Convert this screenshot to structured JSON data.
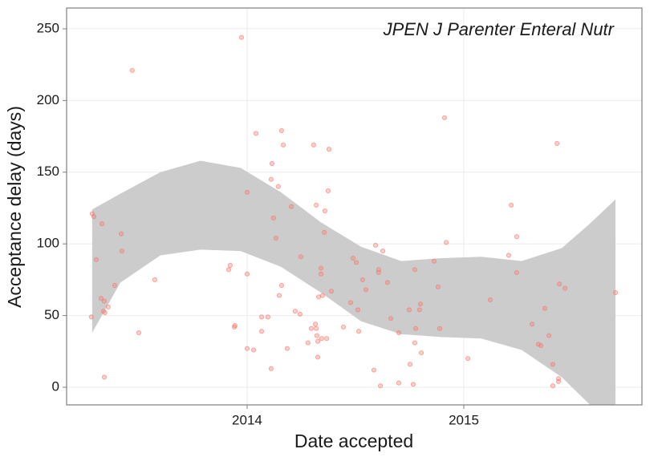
{
  "chart_data": {
    "type": "scatter",
    "annotation": "JPEN J Parenter Enteral Nutr",
    "x_label": "Date accepted",
    "y_label": "Acceptance delay (days)",
    "xlim": [
      2013.167,
      2015.822
    ],
    "xticks": [
      2014,
      2015
    ],
    "ylim": [
      -12.3,
      264.5
    ],
    "yticks": [
      0,
      50,
      100,
      150,
      200,
      250
    ],
    "grid": true,
    "color": "#f8766d",
    "x": [
      2013.285,
      2013.293,
      2013.281,
      2013.304,
      2013.33,
      2013.326,
      2013.341,
      2013.337,
      2013.344,
      2013.359,
      2013.341,
      2013.389,
      2013.419,
      2013.422,
      2013.47,
      2013.5,
      2013.574,
      2013.915,
      2013.922,
      2013.941,
      2013.944,
      2013.974,
      2014.0,
      2014.0,
      2014.0,
      2014.03,
      2014.041,
      2014.067,
      2014.067,
      2014.096,
      2014.111,
      2014.115,
      2014.111,
      2014.122,
      2014.133,
      2014.144,
      2014.148,
      2014.159,
      2014.159,
      2014.167,
      2014.185,
      2014.204,
      2014.222,
      2014.248,
      2014.244,
      2014.281,
      2014.296,
      2014.307,
      2014.315,
      2014.319,
      2014.319,
      2014.322,
      2014.326,
      2014.326,
      2014.33,
      2014.341,
      2014.341,
      2014.344,
      2014.348,
      2014.356,
      2014.359,
      2014.367,
      2014.374,
      2014.378,
      2014.389,
      2014.444,
      2014.478,
      2014.489,
      2014.504,
      2014.511,
      2014.515,
      2014.533,
      2014.548,
      2014.585,
      2014.593,
      2014.607,
      2014.607,
      2014.615,
      2014.626,
      2014.648,
      2014.663,
      2014.7,
      2014.7,
      2014.748,
      2014.752,
      2014.767,
      2014.774,
      2014.774,
      2014.778,
      2014.796,
      2014.8,
      2014.804,
      2014.863,
      2014.881,
      2014.889,
      2014.911,
      2014.919,
      2015.019,
      2015.122,
      2015.207,
      2015.219,
      2015.244,
      2015.244,
      2015.315,
      2015.344,
      2015.356,
      2015.374,
      2015.393,
      2015.411,
      2015.411,
      2015.43,
      2015.437,
      2015.437,
      2015.441,
      2015.467,
      2015.7
    ],
    "values": [
      121,
      119,
      49,
      89,
      114,
      62,
      60,
      53,
      52,
      56,
      7,
      71,
      107,
      95,
      221,
      38,
      75,
      82,
      85,
      42,
      43,
      244,
      136,
      79,
      27,
      26,
      177,
      49,
      39,
      49,
      13,
      156,
      145,
      118,
      104,
      140,
      64,
      71,
      179,
      169,
      27,
      126,
      53,
      91,
      51,
      31,
      41,
      169,
      44,
      127,
      41,
      36,
      32,
      21,
      63,
      83,
      79,
      34,
      64,
      108,
      123,
      34,
      137,
      166,
      67,
      42,
      59,
      90,
      87,
      54,
      39,
      75,
      68,
      12,
      99,
      82,
      80,
      1,
      95,
      73,
      48,
      38,
      3,
      54,
      16,
      2,
      82,
      31,
      41,
      54,
      58,
      24,
      88,
      70,
      41,
      188,
      101,
      20,
      61,
      92,
      127,
      105,
      80,
      44,
      30,
      29,
      55,
      36,
      16,
      1,
      170,
      6,
      4,
      72,
      69,
      66
    ],
    "band": {
      "color": "#cccccc",
      "x": [
        2013.285,
        2013.415,
        2013.6,
        2013.785,
        2013.97,
        2014.156,
        2014.341,
        2014.526,
        2014.711,
        2014.896,
        2015.081,
        2015.267,
        2015.452,
        2015.581,
        2015.7
      ],
      "upper": [
        124,
        135,
        150,
        158,
        153,
        136,
        115,
        98,
        88,
        90,
        91,
        88,
        97,
        114,
        131
      ],
      "lower": [
        38,
        73,
        92,
        96,
        95,
        84,
        66,
        46,
        37,
        35,
        34,
        26,
        7,
        -12,
        -45
      ]
    }
  }
}
